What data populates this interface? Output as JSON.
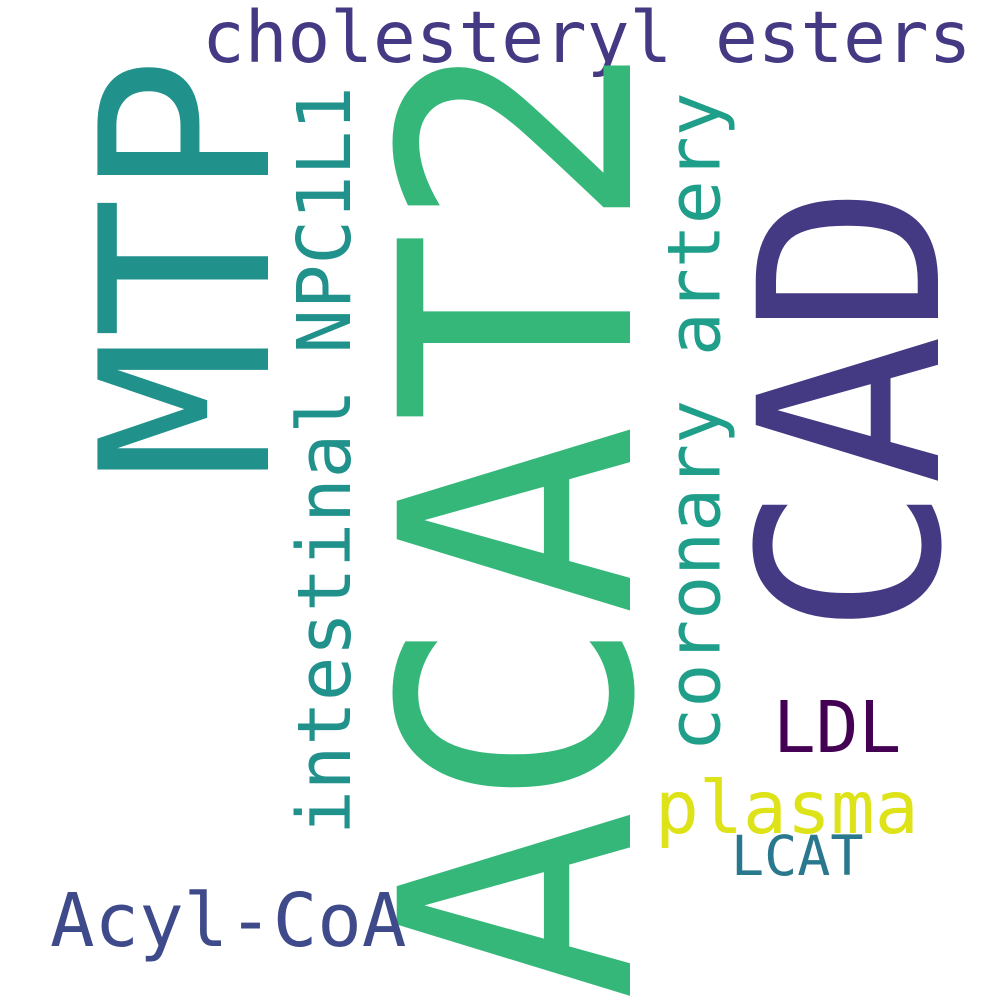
{
  "words": {
    "acat2": {
      "text": "ACAT2",
      "color": "#35b779"
    },
    "cad": {
      "text": "CAD",
      "color": "#443983"
    },
    "mtp": {
      "text": "MTP",
      "color": "#21918c"
    },
    "cholesteryl_esters": {
      "text": "cholesteryl esters",
      "color": "#443983"
    },
    "npc1l1": {
      "text": "NPC1L1",
      "color": "#21918c"
    },
    "intestinal": {
      "text": "intestinal",
      "color": "#21918c"
    },
    "coronary_artery": {
      "text": "coronary artery",
      "color": "#1f9e89"
    },
    "ldl": {
      "text": "LDL",
      "color": "#440154"
    },
    "plasma": {
      "text": "plasma",
      "color": "#dde318"
    },
    "lcat": {
      "text": "LCAT",
      "color": "#2a788e"
    },
    "acyl_coa": {
      "text": "Acyl-CoA",
      "color": "#3e4a89"
    }
  }
}
